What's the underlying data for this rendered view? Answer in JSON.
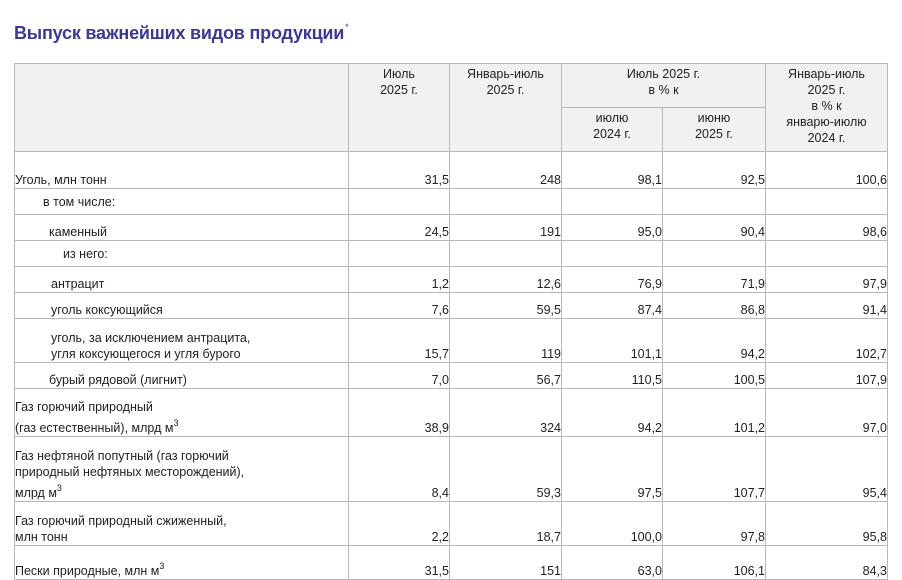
{
  "title": "Выпуск важнейших видов продукции",
  "title_marker": "*",
  "header": {
    "col_month": "Июль\n2025 г.",
    "col_ytd": "Январь-июль\n2025 г.",
    "col_month_pct": "Июль 2025 г.\nв % к",
    "col_month_pct_prev_year": "июлю\n2024 г.",
    "col_month_pct_prev_month": "июню\n2025 г.",
    "col_ytd_pct": "Январь-июль\n2025 г.\nв % к\nянварю-июлю\n2024 г."
  },
  "rows": [
    {
      "label": "Уголь, млн тонн",
      "values": [
        "31,5",
        "248",
        "98,1",
        "92,5",
        "100,6"
      ]
    },
    {
      "label": "в том числе:"
    },
    {
      "label": "каменный",
      "values": [
        "24,5",
        "191",
        "95,0",
        "90,4",
        "98,6"
      ]
    },
    {
      "label": "из него:"
    },
    {
      "label": "антрацит",
      "values": [
        "1,2",
        "12,6",
        "76,9",
        "71,9",
        "97,9"
      ]
    },
    {
      "label": "уголь коксующийся",
      "values": [
        "7,6",
        "59,5",
        "87,4",
        "86,8",
        "91,4"
      ]
    },
    {
      "label": "уголь, за исключением антрацита,\nугля коксующегося и угля бурого",
      "values": [
        "15,7",
        "119",
        "101,1",
        "94,2",
        "102,7"
      ]
    },
    {
      "label": "бурый рядовой (лигнит)",
      "values": [
        "7,0",
        "56,7",
        "110,5",
        "100,5",
        "107,9"
      ]
    },
    {
      "label": "Газ горючий природный\n(газ естественный), млрд м",
      "unit_sup": "3",
      "values": [
        "38,9",
        "324",
        "94,2",
        "101,2",
        "97,0"
      ]
    },
    {
      "label": "Газ нефтяной попутный (газ горючий\nприродный нефтяных месторождений),\nмлрд м",
      "unit_sup": "3",
      "values": [
        "8,4",
        "59,3",
        "97,5",
        "107,7",
        "95,4"
      ]
    },
    {
      "label": "Газ горючий природный сжиженный,\nмлн тонн",
      "values": [
        "2,2",
        "18,7",
        "100,0",
        "97,8",
        "95,8"
      ]
    },
    {
      "label": "Пески природные, млн м",
      "unit_sup": "3",
      "values": [
        "31,5",
        "151",
        "63,0",
        "106,1",
        "84,3"
      ]
    }
  ]
}
